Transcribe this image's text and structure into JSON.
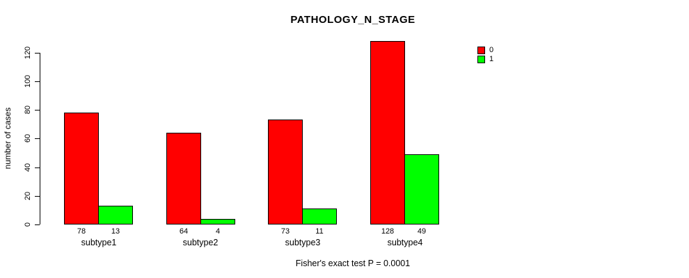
{
  "title": "PATHOLOGY_N_STAGE",
  "chart_data": {
    "type": "bar",
    "grouped": true,
    "title": "PATHOLOGY_N_STAGE",
    "xlabel": "",
    "ylabel": "number of cases",
    "categories": [
      "subtype1",
      "subtype2",
      "subtype3",
      "subtype4"
    ],
    "series": [
      {
        "name": "0",
        "color": "#ff0000",
        "values": [
          78,
          64,
          73,
          128
        ]
      },
      {
        "name": "1",
        "color": "#00ff00",
        "values": [
          13,
          4,
          11,
          49
        ]
      }
    ],
    "bar_value_labels_shown": true,
    "yticks": [
      0,
      20,
      40,
      60,
      80,
      100,
      120
    ],
    "ylim": [
      0,
      128
    ],
    "grid": false,
    "legend_position": "top-right",
    "annotation": "Fisher's exact test P = 0.0001"
  },
  "colors": {
    "series0": "#ff0000",
    "series1": "#00ff00",
    "axis": "#000000",
    "background": "#ffffff"
  }
}
